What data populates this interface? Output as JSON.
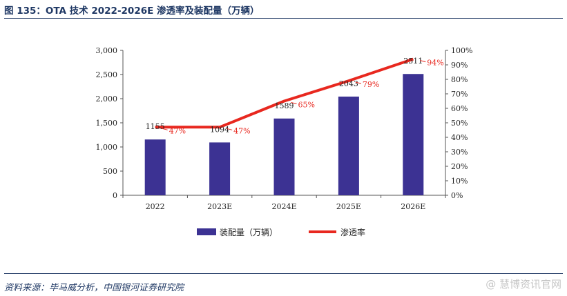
{
  "header": {
    "title": "图 135：OTA 技术 2022-2026E 渗透率及装配量（万辆）"
  },
  "footer": {
    "source": "资料来源：毕马威分析，中国银河证券研究院",
    "watermark": "@ 慧博资讯官网"
  },
  "chart_data": {
    "type": "bar+line",
    "categories": [
      "2022",
      "2023E",
      "2024E",
      "2025E",
      "2026E"
    ],
    "series": [
      {
        "name": "装配量（万辆）",
        "type": "bar",
        "axis": "left",
        "color": "#3c3293",
        "values": [
          1155,
          1094,
          1589,
          2043,
          2511
        ],
        "labels": [
          "1155",
          "1094",
          "1589",
          "2043",
          "2511"
        ]
      },
      {
        "name": "渗透率",
        "type": "line",
        "axis": "right",
        "color": "#e8281f",
        "values": [
          47,
          47,
          65,
          79,
          94
        ],
        "labels": [
          "47%",
          "47%",
          "65%",
          "79%",
          "94%"
        ]
      }
    ],
    "y_left": {
      "ylim": [
        0,
        3000
      ],
      "ticks": [
        0,
        500,
        1000,
        1500,
        2000,
        2500,
        3000
      ],
      "tick_labels": [
        "0",
        "500",
        "1,000",
        "1,500",
        "2,000",
        "2,500",
        "3,000"
      ]
    },
    "y_right": {
      "ylim": [
        0,
        100
      ],
      "ticks": [
        0,
        10,
        20,
        30,
        40,
        50,
        60,
        70,
        80,
        90,
        100
      ],
      "tick_labels": [
        "0%",
        "10%",
        "20%",
        "30%",
        "40%",
        "50%",
        "60%",
        "70%",
        "80%",
        "90%",
        "100%"
      ]
    },
    "legend": {
      "position": "bottom",
      "items": [
        "装配量（万辆）",
        "渗透率"
      ]
    },
    "grid": false
  }
}
